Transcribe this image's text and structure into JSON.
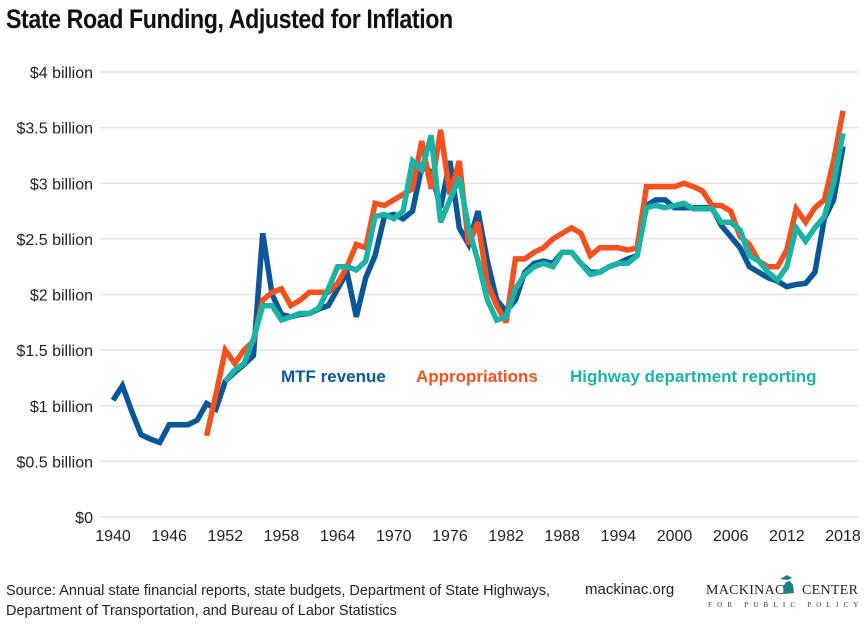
{
  "title": "State Road Funding, Adjusted for Inflation",
  "source": "Source: Annual state financial reports, state budgets, Department of State Highways, Department of Transportation, and Bureau of Labor Statistics",
  "site": "mackinac.org",
  "logo": {
    "line1": "MACKINAC CENTER",
    "line2": "FOR PUBLIC POLICY"
  },
  "chart_data": {
    "type": "line",
    "title": "State Road Funding, Adjusted for Inflation",
    "xlabel": "",
    "ylabel": "",
    "xlim": [
      1940,
      2018
    ],
    "ylim": [
      0,
      4
    ],
    "grid": true,
    "legend_placement": "inside, middle",
    "x_tick_labels": [
      "1940",
      "1946",
      "1952",
      "1958",
      "1964",
      "1970",
      "1976",
      "1982",
      "1988",
      "1994",
      "2000",
      "2006",
      "2012",
      "2018"
    ],
    "y_ticks": [
      0,
      0.5,
      1,
      1.5,
      2,
      2.5,
      3,
      3.5,
      4
    ],
    "y_tick_labels": [
      "$0",
      "$0.5 billion",
      "$1 billion",
      "$1.5 billion",
      "$2 billion",
      "$2.5 billion",
      "$3 billion",
      "$3.5 billion",
      "$4 billion"
    ],
    "x": [
      1940,
      1941,
      1942,
      1943,
      1944,
      1945,
      1946,
      1947,
      1948,
      1949,
      1950,
      1951,
      1952,
      1953,
      1954,
      1955,
      1956,
      1957,
      1958,
      1959,
      1960,
      1961,
      1962,
      1963,
      1964,
      1965,
      1966,
      1967,
      1968,
      1969,
      1970,
      1971,
      1972,
      1973,
      1974,
      1975,
      1976,
      1977,
      1978,
      1979,
      1980,
      1981,
      1982,
      1983,
      1984,
      1985,
      1986,
      1987,
      1988,
      1989,
      1990,
      1991,
      1992,
      1993,
      1994,
      1995,
      1996,
      1997,
      1998,
      1999,
      2000,
      2001,
      2002,
      2003,
      2004,
      2005,
      2006,
      2007,
      2008,
      2009,
      2010,
      2011,
      2012,
      2013,
      2014,
      2015,
      2016,
      2017,
      2018
    ],
    "series": [
      {
        "name": "MTF revenue",
        "color": "#0a5699",
        "values": [
          1.05,
          1.18,
          0.95,
          0.74,
          0.7,
          0.67,
          0.83,
          0.83,
          0.83,
          0.87,
          1.02,
          0.97,
          1.22,
          1.3,
          1.37,
          1.45,
          2.55,
          2.0,
          1.82,
          1.8,
          1.82,
          1.83,
          1.87,
          1.9,
          2.05,
          2.2,
          1.8,
          2.15,
          2.35,
          2.7,
          2.72,
          2.68,
          2.75,
          3.15,
          3.1,
          2.78,
          3.2,
          2.6,
          2.45,
          2.75,
          2.3,
          1.95,
          1.85,
          1.95,
          2.2,
          2.28,
          2.3,
          2.28,
          2.38,
          2.38,
          2.28,
          2.2,
          2.2,
          2.25,
          2.28,
          2.32,
          2.35,
          2.8,
          2.85,
          2.85,
          2.78,
          2.78,
          2.78,
          2.78,
          2.78,
          2.62,
          2.52,
          2.42,
          2.25,
          2.2,
          2.15,
          2.12,
          2.07,
          2.09,
          2.1,
          2.2,
          2.68,
          2.85,
          3.33
        ]
      },
      {
        "name": "Appropriations",
        "color": "#f4511e",
        "values": [
          null,
          null,
          null,
          null,
          null,
          null,
          null,
          null,
          null,
          null,
          0.73,
          1.1,
          1.5,
          1.38,
          1.5,
          1.58,
          1.95,
          2.02,
          2.05,
          1.9,
          1.95,
          2.02,
          2.02,
          2.02,
          2.1,
          2.25,
          2.45,
          2.42,
          2.82,
          2.8,
          2.85,
          2.9,
          2.95,
          3.38,
          2.95,
          3.48,
          2.9,
          3.2,
          2.45,
          2.65,
          2.1,
          1.9,
          1.75,
          2.32,
          2.32,
          2.38,
          2.42,
          2.5,
          2.55,
          2.6,
          2.55,
          2.35,
          2.42,
          2.42,
          2.42,
          2.4,
          2.42,
          2.97,
          2.97,
          2.97,
          2.97,
          3.0,
          2.97,
          2.93,
          2.8,
          2.8,
          2.75,
          2.52,
          2.45,
          2.3,
          2.25,
          2.25,
          2.4,
          2.77,
          2.65,
          2.78,
          2.85,
          3.2,
          3.65
        ]
      },
      {
        "name": "Highway department reporting",
        "color": "#1bb3a4",
        "values": [
          null,
          null,
          null,
          null,
          null,
          null,
          null,
          null,
          null,
          null,
          null,
          null,
          1.22,
          1.32,
          1.38,
          1.6,
          1.9,
          1.9,
          1.77,
          1.8,
          1.83,
          1.83,
          1.88,
          2.05,
          2.25,
          2.25,
          2.22,
          2.3,
          2.7,
          2.72,
          2.68,
          2.75,
          3.2,
          3.12,
          3.43,
          2.65,
          2.85,
          3.05,
          2.6,
          2.3,
          1.95,
          1.77,
          1.8,
          2.05,
          2.18,
          2.25,
          2.28,
          2.25,
          2.38,
          2.38,
          2.28,
          2.18,
          2.2,
          2.25,
          2.28,
          2.28,
          2.35,
          2.78,
          2.8,
          2.78,
          2.8,
          2.82,
          2.77,
          2.77,
          2.77,
          2.65,
          2.65,
          2.58,
          2.35,
          2.3,
          2.2,
          2.13,
          2.25,
          2.6,
          2.48,
          2.6,
          2.7,
          3.0,
          3.45
        ]
      }
    ]
  }
}
